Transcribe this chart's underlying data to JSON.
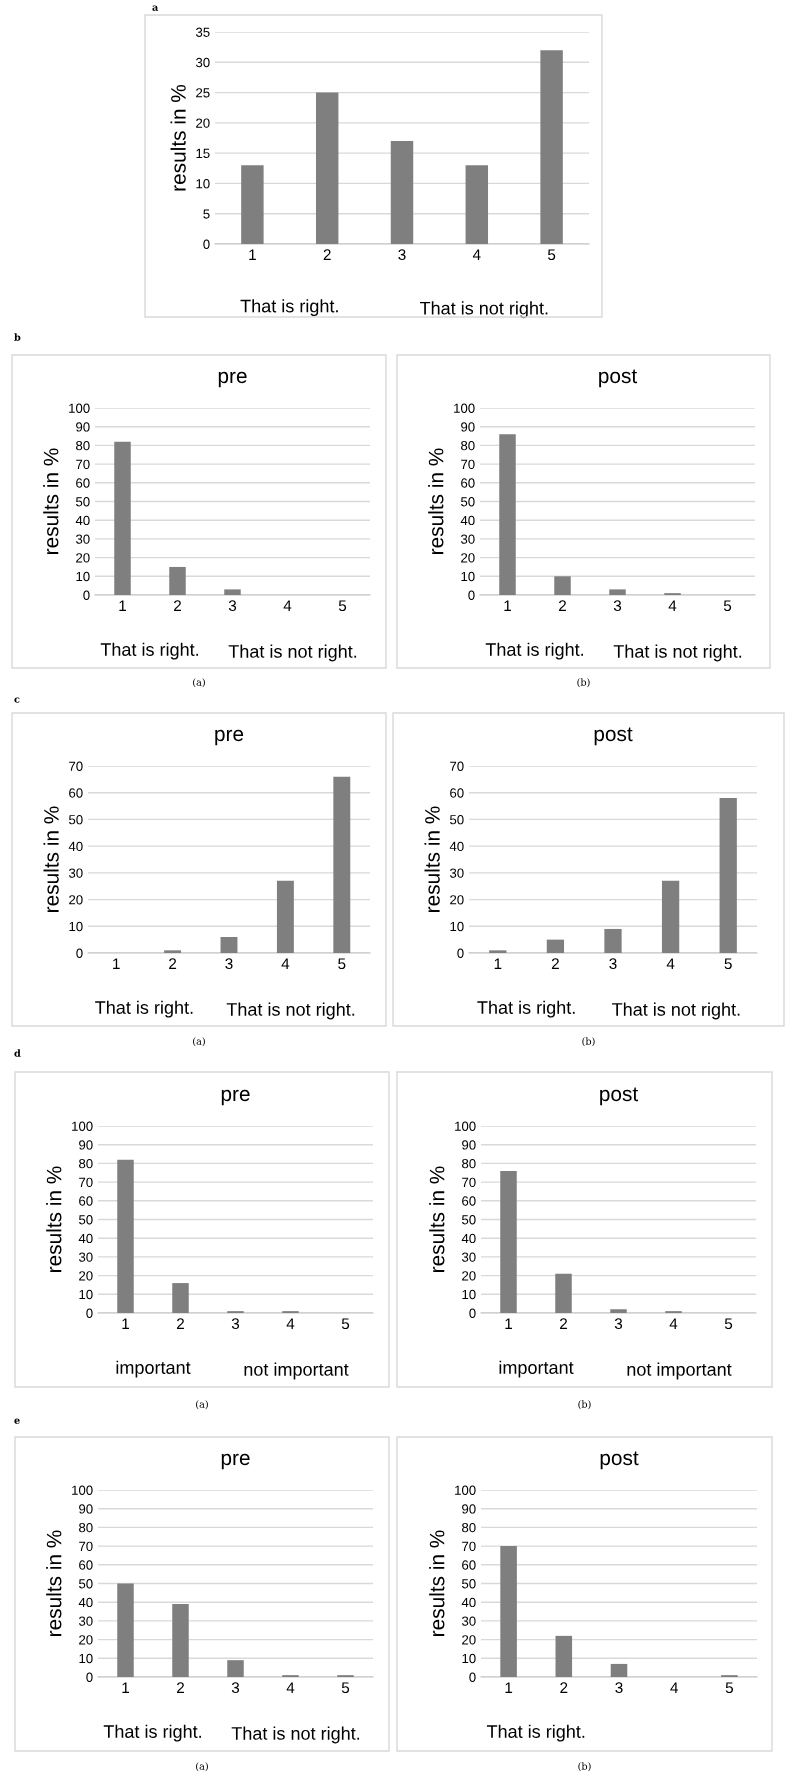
{
  "chart_data": [
    {
      "type": "bar",
      "ylabel": "results in %",
      "categories": [
        "1",
        "2",
        "3",
        "4",
        "5"
      ],
      "values": [
        13,
        25,
        17,
        13,
        32
      ],
      "color": "#7f7f7f",
      "ylim": [
        0,
        35
      ],
      "yticks": [
        0,
        5,
        10,
        15,
        20,
        25,
        30,
        35
      ],
      "grid": "y",
      "annotations": [
        "That is right.",
        "That is not right.",
        "a"
      ]
    },
    {
      "type": "bar",
      "title": "pre",
      "ylabel": "results in %",
      "categories": [
        "1",
        "2",
        "3",
        "4",
        "5"
      ],
      "values": [
        82,
        15,
        3,
        0,
        0
      ],
      "color": "#7f7f7f",
      "ylim": [
        0,
        100
      ],
      "yticks": [
        0,
        10,
        20,
        30,
        40,
        50,
        60,
        70,
        80,
        90,
        100
      ],
      "grid": "y",
      "annotations": [
        "That is right.",
        "That is not right.",
        "b",
        "(a)"
      ]
    },
    {
      "type": "bar",
      "title": "post",
      "ylabel": "results in %",
      "categories": [
        "1",
        "2",
        "3",
        "4",
        "5"
      ],
      "values": [
        86,
        10,
        3,
        1,
        0
      ],
      "color": "#7f7f7f",
      "ylim": [
        0,
        100
      ],
      "yticks": [
        0,
        10,
        20,
        30,
        40,
        50,
        60,
        70,
        80,
        90,
        100
      ],
      "grid": "y",
      "annotations": [
        "That is right.",
        "That is not right.",
        "(b)"
      ]
    },
    {
      "type": "bar",
      "title": "pre",
      "ylabel": "results in %",
      "categories": [
        "1",
        "2",
        "3",
        "4",
        "5"
      ],
      "values": [
        0,
        1,
        6,
        27,
        66
      ],
      "color": "#7f7f7f",
      "ylim": [
        0,
        70
      ],
      "yticks": [
        0,
        10,
        20,
        30,
        40,
        50,
        60,
        70
      ],
      "grid": "y",
      "annotations": [
        "That is right.",
        "That is not right.",
        "c",
        "(a)"
      ]
    },
    {
      "type": "bar",
      "title": "post",
      "ylabel": "results in %",
      "categories": [
        "1",
        "2",
        "3",
        "4",
        "5"
      ],
      "values": [
        1,
        5,
        9,
        27,
        58
      ],
      "color": "#7f7f7f",
      "ylim": [
        0,
        70
      ],
      "yticks": [
        0,
        10,
        20,
        30,
        40,
        50,
        60,
        70
      ],
      "grid": "y",
      "annotations": [
        "That is right.",
        "That is not right.",
        "(b)"
      ]
    },
    {
      "type": "bar",
      "title": "pre",
      "ylabel": "results in %",
      "categories": [
        "1",
        "2",
        "3",
        "4",
        "5"
      ],
      "values": [
        82,
        16,
        1,
        1,
        0
      ],
      "color": "#7f7f7f",
      "ylim": [
        0,
        100
      ],
      "yticks": [
        0,
        10,
        20,
        30,
        40,
        50,
        60,
        70,
        80,
        90,
        100
      ],
      "grid": "y",
      "annotations": [
        "important",
        "not important",
        "d",
        "(a)"
      ]
    },
    {
      "type": "bar",
      "title": "post",
      "ylabel": "results in %",
      "categories": [
        "1",
        "2",
        "3",
        "4",
        "5"
      ],
      "values": [
        76,
        21,
        2,
        1,
        0
      ],
      "color": "#7f7f7f",
      "ylim": [
        0,
        100
      ],
      "yticks": [
        0,
        10,
        20,
        30,
        40,
        50,
        60,
        70,
        80,
        90,
        100
      ],
      "grid": "y",
      "annotations": [
        "important",
        "not important",
        "(b)"
      ]
    },
    {
      "type": "bar",
      "title": "pre",
      "ylabel": "results in %",
      "categories": [
        "1",
        "2",
        "3",
        "4",
        "5"
      ],
      "values": [
        50,
        39,
        9,
        1,
        1
      ],
      "color": "#7f7f7f",
      "ylim": [
        0,
        100
      ],
      "yticks": [
        0,
        10,
        20,
        30,
        40,
        50,
        60,
        70,
        80,
        90,
        100
      ],
      "grid": "y",
      "annotations": [
        "That is right.",
        "That is not right.",
        "e",
        "(a)"
      ]
    },
    {
      "type": "bar",
      "title": "post",
      "ylabel": "results in %",
      "categories": [
        "1",
        "2",
        "3",
        "4",
        "5"
      ],
      "values": [
        70,
        22,
        7,
        0,
        1
      ],
      "color": "#7f7f7f",
      "ylim": [
        0,
        100
      ],
      "yticks": [
        0,
        10,
        20,
        30,
        40,
        50,
        60,
        70,
        80,
        90,
        100
      ],
      "grid": "y",
      "annotations": [
        "That is right.",
        "(b)"
      ]
    }
  ]
}
